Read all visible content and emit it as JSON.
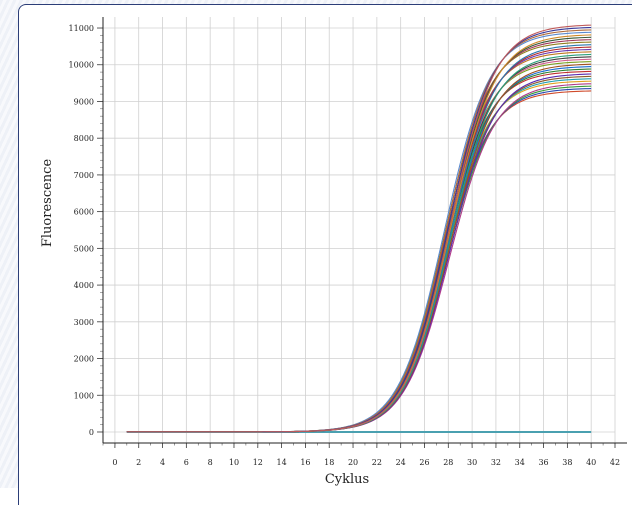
{
  "chart_data": {
    "type": "line",
    "title": "",
    "xlabel": "Cyklus",
    "ylabel": "Fluorescence",
    "xlim": [
      -1,
      42
    ],
    "ylim": [
      -300,
      11300
    ],
    "x_ticks": [
      "0",
      "2",
      "4",
      "6",
      "8",
      "10",
      "12",
      "14",
      "16",
      "18",
      "20",
      "22",
      "24",
      "26",
      "28",
      "30",
      "32",
      "34",
      "36",
      "38",
      "40",
      "42"
    ],
    "y_ticks": [
      "0",
      "1000",
      "2000",
      "3000",
      "4000",
      "5000",
      "6000",
      "7000",
      "8000",
      "9000",
      "10000",
      "11000"
    ],
    "grid": true,
    "baseline": {
      "x_start": 1,
      "x_end": 40,
      "y": 0,
      "color": "#4aa0b0"
    },
    "sigmoid_series": {
      "x_start": 1,
      "x_end": 40,
      "count": 28,
      "midpoint_cycle": 28,
      "slope_cycles": 1.9,
      "plateau_min": 9300,
      "plateau_max": 11100,
      "colors": [
        "#d04a2a",
        "#2a4ab0",
        "#3a9a3a",
        "#b03a8a",
        "#e0a020",
        "#20a0b0",
        "#8a5a2a",
        "#5a2ab0",
        "#c03030",
        "#308030",
        "#1a6ad0",
        "#a05020",
        "#7aa020",
        "#d06090",
        "#404040",
        "#2aa07a",
        "#c07a20",
        "#6a3ab0",
        "#b02a2a",
        "#2a7ab0",
        "#908020",
        "#a03a5a",
        "#3a5a3a",
        "#d08a2a",
        "#5a8ad0",
        "#b06a3a",
        "#3a3a9a",
        "#c05a5a"
      ]
    }
  }
}
